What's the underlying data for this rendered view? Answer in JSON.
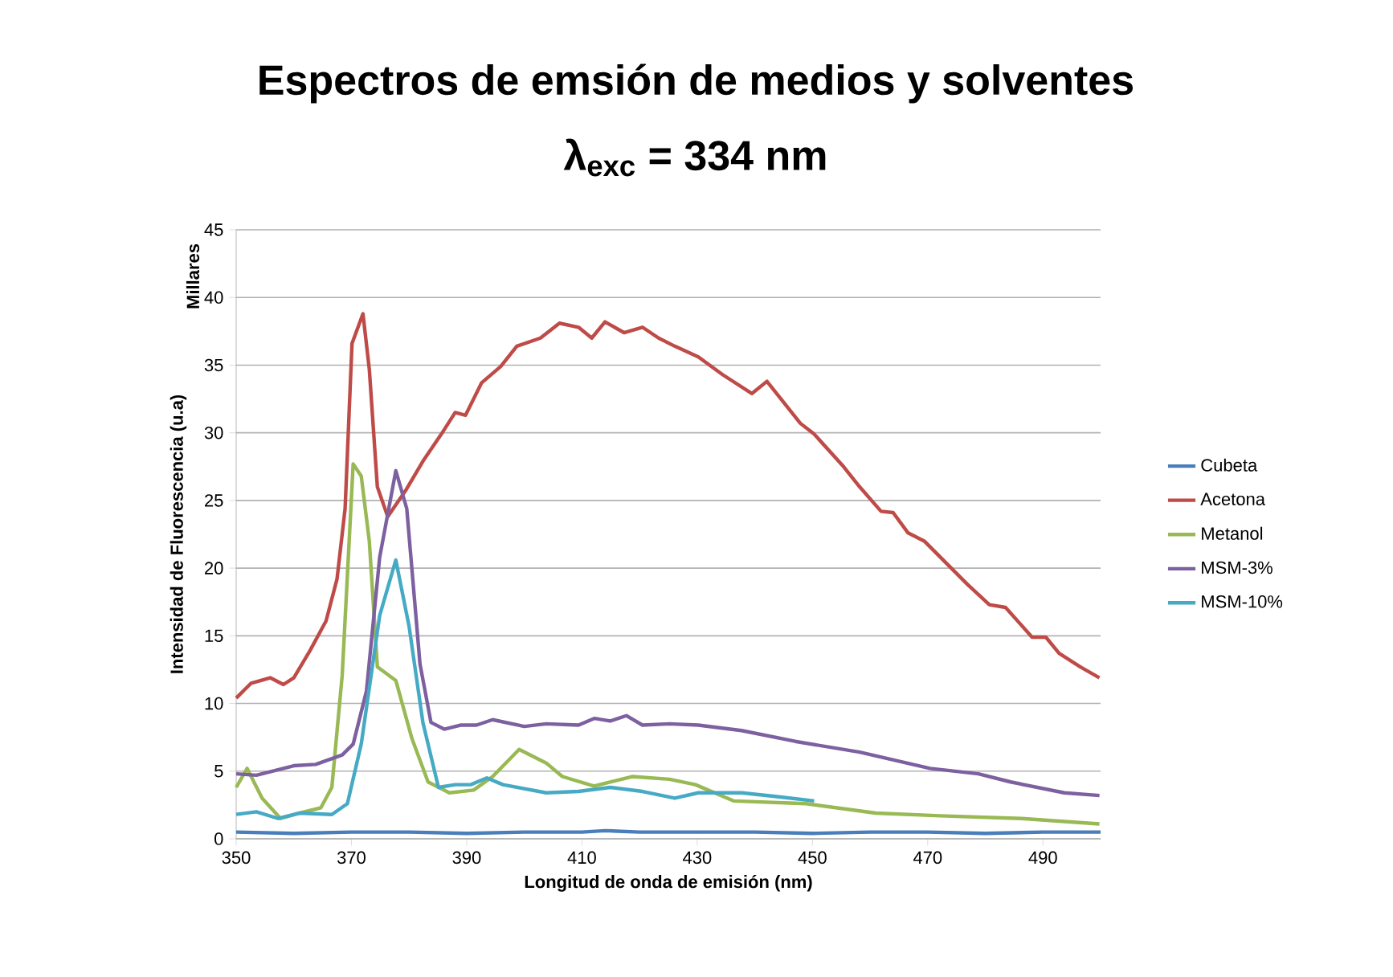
{
  "chart_data": {
    "type": "line",
    "title": "Espectros de emsión de medios y solventes",
    "subtitle": "λ$_{exc}$ = 334 nm",
    "xlabel": "Longitud de onda de emisión (nm)",
    "ylabel": "Intensidad de Fluorescencia (u.a)",
    "annotations": [
      "Millares"
    ],
    "xlim": [
      350,
      500
    ],
    "xticks": [
      350,
      370,
      390,
      410,
      430,
      450,
      470,
      490
    ],
    "ylim": [
      0,
      45
    ],
    "yticks": [
      0,
      5,
      10,
      15,
      20,
      25,
      30,
      35,
      40,
      45
    ],
    "grid": "y",
    "legend": "right",
    "marker": "none",
    "line_style": "solid",
    "series": [
      {
        "name": "Cubeta",
        "color": "#4a7ebb",
        "x": [
          350,
          360,
          370,
          380,
          390,
          400,
          410,
          414,
          420,
          430,
          440,
          450,
          460,
          470,
          480,
          490,
          500
        ],
        "values": [
          0.5,
          0.4,
          0.5,
          0.5,
          0.4,
          0.5,
          0.5,
          0.6,
          0.5,
          0.5,
          0.5,
          0.4,
          0.5,
          0.5,
          0.4,
          0.5,
          0.5
        ]
      },
      {
        "name": "Acetona",
        "color": "#be4b48",
        "x": [
          350,
          352.6,
          355.9,
          358.2,
          360,
          362.8,
          365.6,
          367.5,
          368.9,
          370.1,
          372,
          373.1,
          374.5,
          376.3,
          379.5,
          382.4,
          385.6,
          388,
          389.8,
          392.6,
          395.9,
          398.7,
          402.8,
          406.1,
          409.4,
          411.7,
          414,
          417.3,
          420.5,
          423.3,
          426.1,
          430.2,
          434.4,
          439.5,
          442.1,
          447.9,
          450.3,
          455.4,
          458.2,
          461.9,
          464,
          466.6,
          469.4,
          476.9,
          480.7,
          483.5,
          488.1,
          490.5,
          492.8,
          496.5,
          499.8
        ],
        "values": [
          10.4,
          11.5,
          11.9,
          11.4,
          11.9,
          13.9,
          16.1,
          19.2,
          24.4,
          36.6,
          38.8,
          34.7,
          26,
          23.8,
          25.8,
          27.9,
          29.9,
          31.5,
          31.3,
          33.7,
          34.9,
          36.4,
          37,
          38.1,
          37.8,
          37,
          38.2,
          37.4,
          37.8,
          37,
          36.4,
          35.6,
          34.3,
          32.9,
          33.8,
          30.7,
          29.9,
          27.5,
          26,
          24.2,
          24.1,
          22.6,
          22,
          18.8,
          17.3,
          17.1,
          14.9,
          14.9,
          13.7,
          12.7,
          11.9
        ]
      },
      {
        "name": "Metanol",
        "color": "#98b954",
        "x": [
          350,
          351.9,
          354.5,
          357.7,
          361,
          364.7,
          366.6,
          368.4,
          370.3,
          371.7,
          373.1,
          374.5,
          377.7,
          380.5,
          383.3,
          387,
          391.2,
          394.5,
          399.1,
          403.8,
          406.6,
          412.1,
          418.7,
          425.2,
          429.7,
          436.3,
          448.9,
          461,
          472.2,
          486.3,
          499.8
        ],
        "values": [
          3.8,
          5.2,
          3.0,
          1.5,
          1.9,
          2.3,
          3.8,
          12.1,
          27.7,
          26.8,
          22,
          12.7,
          11.7,
          7.4,
          4.2,
          3.4,
          3.6,
          4.6,
          6.6,
          5.6,
          4.6,
          3.9,
          4.6,
          4.4,
          4.0,
          2.8,
          2.6,
          1.9,
          1.7,
          1.5,
          1.1
        ]
      },
      {
        "name": "MSM-3%",
        "color": "#7d60a0",
        "x": [
          350,
          353.5,
          360,
          363.8,
          368.4,
          370.3,
          372.6,
          374.9,
          377.7,
          379.6,
          381.9,
          383.8,
          386.1,
          388.9,
          391.7,
          394.5,
          400,
          403.8,
          409.4,
          412.2,
          414.9,
          417.7,
          420.5,
          425.2,
          430.2,
          437.7,
          447,
          458.2,
          470.4,
          478.8,
          484.4,
          493.7,
          499.8
        ],
        "values": [
          4.8,
          4.7,
          5.4,
          5.5,
          6.2,
          7.0,
          10.9,
          20.8,
          27.2,
          24.4,
          12.9,
          8.6,
          8.1,
          8.4,
          8.4,
          8.8,
          8.3,
          8.5,
          8.4,
          8.9,
          8.7,
          9.1,
          8.4,
          8.5,
          8.4,
          8.0,
          7.2,
          6.4,
          5.2,
          4.8,
          4.2,
          3.4,
          3.2
        ]
      },
      {
        "name": "MSM-10%",
        "color": "#46aac5",
        "x": [
          350,
          353.5,
          357.3,
          361,
          366.6,
          369.3,
          371.7,
          374.9,
          377.7,
          380,
          382.4,
          385.1,
          388,
          390.7,
          393.5,
          396.3,
          403.8,
          409.4,
          414.9,
          420.5,
          426.1,
          430.2,
          437.7,
          444.2,
          450.3
        ],
        "values": [
          1.8,
          2.0,
          1.5,
          1.9,
          1.8,
          2.6,
          7.0,
          16.5,
          20.6,
          15.7,
          8.6,
          3.8,
          4.0,
          4.0,
          4.5,
          4.0,
          3.4,
          3.5,
          3.8,
          3.5,
          3.0,
          3.4,
          3.4,
          3.1,
          2.8
        ]
      }
    ]
  }
}
